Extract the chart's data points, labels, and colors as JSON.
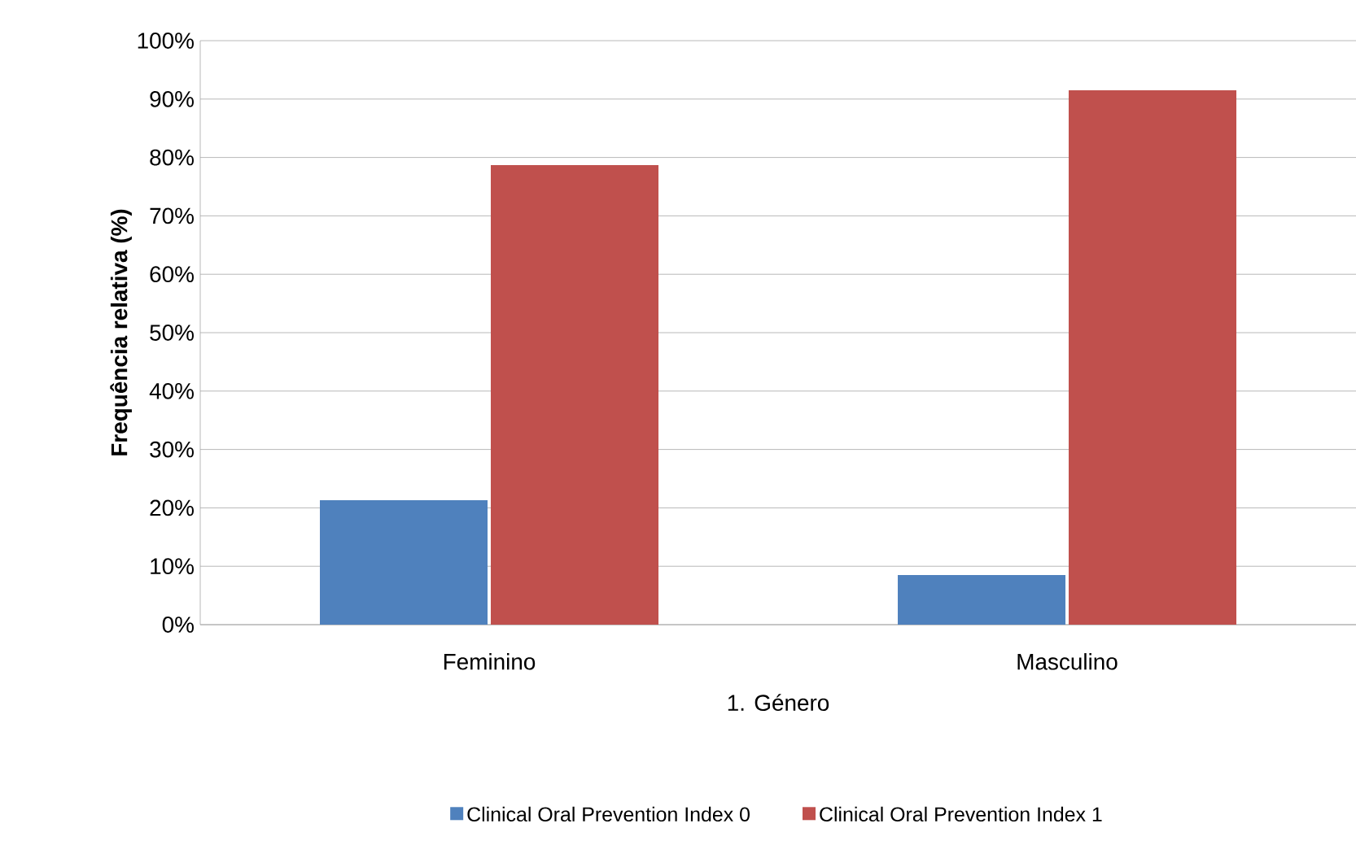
{
  "chart_data": {
    "type": "bar",
    "xlabel": "1. Género",
    "ylabel": "Frequência relativa (%)",
    "categories": [
      "Feminino",
      "Masculino"
    ],
    "series": [
      {
        "name": "Clinical Oral Prevention Index 0",
        "color": "#4f81bd",
        "values": [
          21.3,
          8.5
        ]
      },
      {
        "name": "Clinical Oral Prevention Index 1",
        "color": "#c0504d",
        "values": [
          78.7,
          91.5
        ]
      }
    ],
    "ylim": [
      0,
      100
    ],
    "yticks": [
      {
        "value": 0,
        "label": "0%"
      },
      {
        "value": 10,
        "label": "10%"
      },
      {
        "value": 20,
        "label": "20%"
      },
      {
        "value": 30,
        "label": "30%"
      },
      {
        "value": 40,
        "label": "40%"
      },
      {
        "value": 50,
        "label": "50%"
      },
      {
        "value": 60,
        "label": "60%"
      },
      {
        "value": 70,
        "label": "70%"
      },
      {
        "value": 80,
        "label": "80%"
      },
      {
        "value": 90,
        "label": "90%"
      },
      {
        "value": 100,
        "label": "100%"
      }
    ],
    "grid": "y",
    "legend": "bottom"
  }
}
